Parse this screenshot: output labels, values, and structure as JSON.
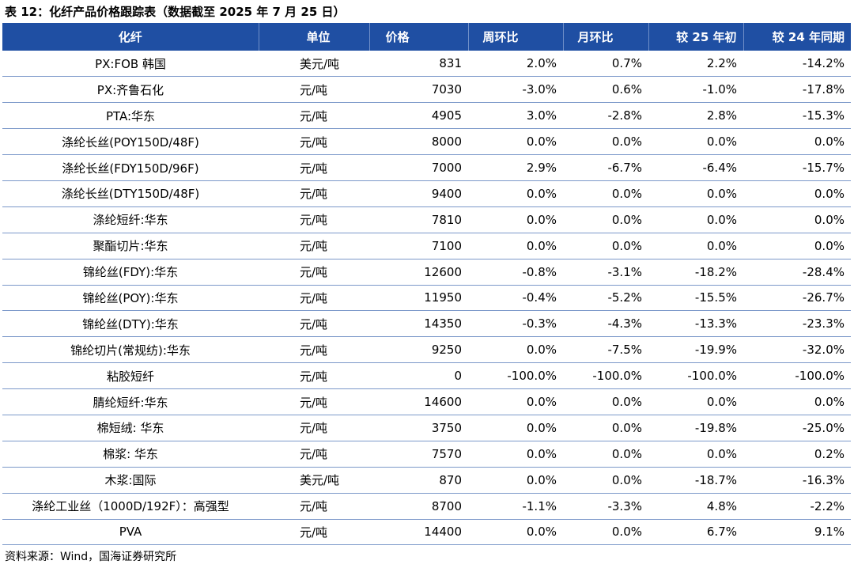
{
  "title": "表 12：化纤产品价格跟踪表（数据截至 2025 年 7 月 25 日）",
  "header": {
    "name": "化纤",
    "unit": "单位",
    "price": "价格",
    "wow": "周环比",
    "mom": "月环比",
    "vs_start_25": "较 25 年初",
    "yoy_24": "较 24 年同期"
  },
  "rows": [
    {
      "name": "PX:FOB 韩国",
      "unit": "美元/吨",
      "price": "831",
      "wow": "2.0%",
      "mom": "0.7%",
      "vs_start_25": "2.2%",
      "yoy_24": "-14.2%"
    },
    {
      "name": "PX:齐鲁石化",
      "unit": "元/吨",
      "price": "7030",
      "wow": "-3.0%",
      "mom": "0.6%",
      "vs_start_25": "-1.0%",
      "yoy_24": "-17.8%"
    },
    {
      "name": "PTA:华东",
      "unit": "元/吨",
      "price": "4905",
      "wow": "3.0%",
      "mom": "-2.8%",
      "vs_start_25": "2.8%",
      "yoy_24": "-15.3%"
    },
    {
      "name": "涤纶长丝(POY150D/48F)",
      "unit": "元/吨",
      "price": "8000",
      "wow": "0.0%",
      "mom": "0.0%",
      "vs_start_25": "0.0%",
      "yoy_24": "0.0%"
    },
    {
      "name": "涤纶长丝(FDY150D/96F)",
      "unit": "元/吨",
      "price": "7000",
      "wow": "2.9%",
      "mom": "-6.7%",
      "vs_start_25": "-6.4%",
      "yoy_24": "-15.7%"
    },
    {
      "name": "涤纶长丝(DTY150D/48F)",
      "unit": "元/吨",
      "price": "9400",
      "wow": "0.0%",
      "mom": "0.0%",
      "vs_start_25": "0.0%",
      "yoy_24": "0.0%"
    },
    {
      "name": "涤纶短纤:华东",
      "unit": "元/吨",
      "price": "7810",
      "wow": "0.0%",
      "mom": "0.0%",
      "vs_start_25": "0.0%",
      "yoy_24": "0.0%"
    },
    {
      "name": "聚酯切片:华东",
      "unit": "元/吨",
      "price": "7100",
      "wow": "0.0%",
      "mom": "0.0%",
      "vs_start_25": "0.0%",
      "yoy_24": "0.0%"
    },
    {
      "name": "锦纶丝(FDY):华东",
      "unit": "元/吨",
      "price": "12600",
      "wow": "-0.8%",
      "mom": "-3.1%",
      "vs_start_25": "-18.2%",
      "yoy_24": "-28.4%"
    },
    {
      "name": "锦纶丝(POY):华东",
      "unit": "元/吨",
      "price": "11950",
      "wow": "-0.4%",
      "mom": "-5.2%",
      "vs_start_25": "-15.5%",
      "yoy_24": "-26.7%"
    },
    {
      "name": "锦纶丝(DTY):华东",
      "unit": "元/吨",
      "price": "14350",
      "wow": "-0.3%",
      "mom": "-4.3%",
      "vs_start_25": "-13.3%",
      "yoy_24": "-23.3%"
    },
    {
      "name": "锦纶切片(常规纺):华东",
      "unit": "元/吨",
      "price": "9250",
      "wow": "0.0%",
      "mom": "-7.5%",
      "vs_start_25": "-19.9%",
      "yoy_24": "-32.0%"
    },
    {
      "name": "粘胶短纤",
      "unit": "元/吨",
      "price": "0",
      "wow": "-100.0%",
      "mom": "-100.0%",
      "vs_start_25": "-100.0%",
      "yoy_24": "-100.0%"
    },
    {
      "name": "腈纶短纤:华东",
      "unit": "元/吨",
      "price": "14600",
      "wow": "0.0%",
      "mom": "0.0%",
      "vs_start_25": "0.0%",
      "yoy_24": "0.0%"
    },
    {
      "name": "棉短绒: 华东",
      "unit": "元/吨",
      "price": "3750",
      "wow": "0.0%",
      "mom": "0.0%",
      "vs_start_25": "-19.8%",
      "yoy_24": "-25.0%"
    },
    {
      "name": "棉浆: 华东",
      "unit": "元/吨",
      "price": "7570",
      "wow": "0.0%",
      "mom": "0.0%",
      "vs_start_25": "0.0%",
      "yoy_24": "0.2%"
    },
    {
      "name": "木浆:国际",
      "unit": "美元/吨",
      "price": "870",
      "wow": "0.0%",
      "mom": "0.0%",
      "vs_start_25": "-18.7%",
      "yoy_24": "-16.3%"
    },
    {
      "name": "涤纶工业丝（1000D/192F）：高强型",
      "unit": "元/吨",
      "price": "8700",
      "wow": "-1.1%",
      "mom": "-3.3%",
      "vs_start_25": "4.8%",
      "yoy_24": "-2.2%"
    },
    {
      "name": "PVA",
      "unit": "元/吨",
      "price": "14400",
      "wow": "0.0%",
      "mom": "0.0%",
      "vs_start_25": "6.7%",
      "yoy_24": "9.1%"
    }
  ],
  "source": "资料来源：Wind，国海证券研究所"
}
